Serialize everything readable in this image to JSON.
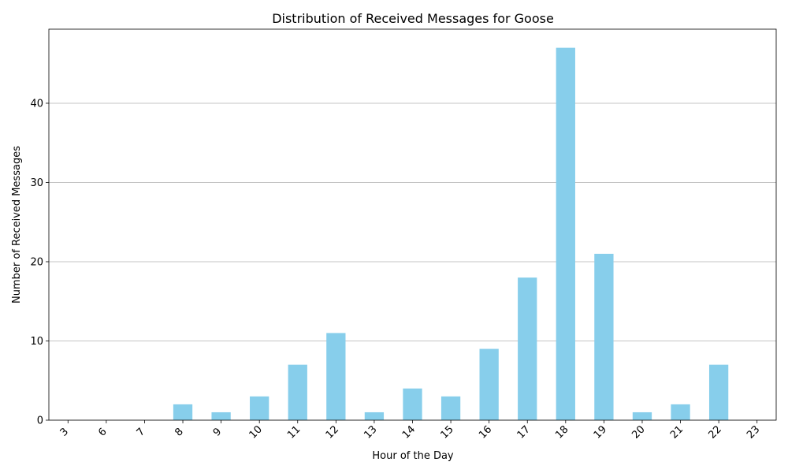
{
  "chart_data": {
    "type": "bar",
    "title": "Distribution of Received Messages for Goose",
    "xlabel": "Hour of the Day",
    "ylabel": "Number of Received Messages",
    "categories": [
      "3",
      "6",
      "7",
      "8",
      "9",
      "10",
      "11",
      "12",
      "13",
      "14",
      "15",
      "16",
      "17",
      "18",
      "19",
      "20",
      "21",
      "22",
      "23"
    ],
    "values": [
      0,
      0,
      0,
      2,
      1,
      3,
      7,
      11,
      1,
      4,
      3,
      9,
      18,
      47,
      21,
      1,
      2,
      7,
      0
    ],
    "ylim": [
      0,
      49.35
    ],
    "yticks": [
      0,
      10,
      20,
      30,
      40
    ],
    "grid": "y-axis",
    "bar_color": "#87ceeb",
    "legend": "none"
  }
}
